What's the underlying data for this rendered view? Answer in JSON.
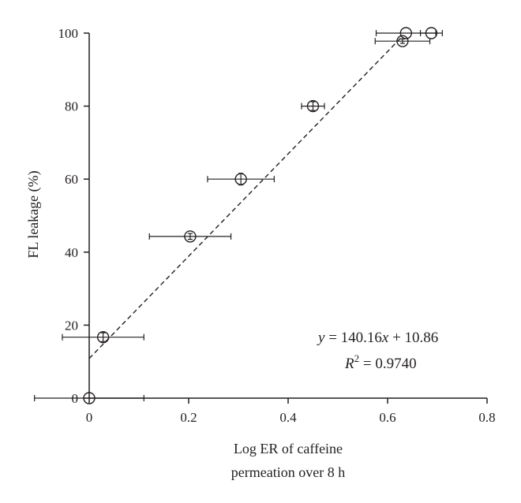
{
  "chart_data": {
    "type": "scatter",
    "title": "",
    "xlabel_lines": [
      "Log ER of caffeine",
      "permeation over 8 h"
    ],
    "ylabel": "FL leakage (%)",
    "xlim": [
      0,
      0.8
    ],
    "ylim": [
      0,
      100
    ],
    "xticks": [
      0,
      0.2,
      0.4,
      0.6,
      0.8
    ],
    "xtick_labels": [
      "0",
      "0.2",
      "0.4",
      "0.6",
      "0.8"
    ],
    "yticks": [
      0,
      20,
      40,
      60,
      80,
      100
    ],
    "ytick_labels": [
      "0",
      "20",
      "40",
      "60",
      "80",
      "100"
    ],
    "grid": false,
    "points": [
      {
        "x": 0.0,
        "y": 0,
        "xerr": 0.11,
        "yerr": 0
      },
      {
        "x": 0.028,
        "y": 16.7,
        "xerr": 0.082,
        "yerr": 1.2
      },
      {
        "x": 0.203,
        "y": 44.3,
        "xerr": 0.082,
        "yerr": 0.8
      },
      {
        "x": 0.305,
        "y": 60.0,
        "xerr": 0.067,
        "yerr": 1.6
      },
      {
        "x": 0.45,
        "y": 80.0,
        "xerr": 0.023,
        "yerr": 1.2
      },
      {
        "x": 0.63,
        "y": 97.8,
        "xerr": 0.055,
        "yerr": 0.6
      },
      {
        "x": 0.637,
        "y": 100,
        "xerr": 0.06,
        "yerr": 0
      },
      {
        "x": 0.688,
        "y": 100,
        "xerr": 0.022,
        "yerr": 0
      }
    ],
    "fit": {
      "slope": 140.16,
      "intercept": 10.86,
      "x_range": [
        0,
        0.63
      ]
    },
    "equation": {
      "y_var": "y",
      "eq_main": " = 140.16",
      "x_var": "x",
      "eq_tail": " + 10.86",
      "r_var": "R",
      "r_exp": "2",
      "r_value": " = 0.9740"
    }
  }
}
